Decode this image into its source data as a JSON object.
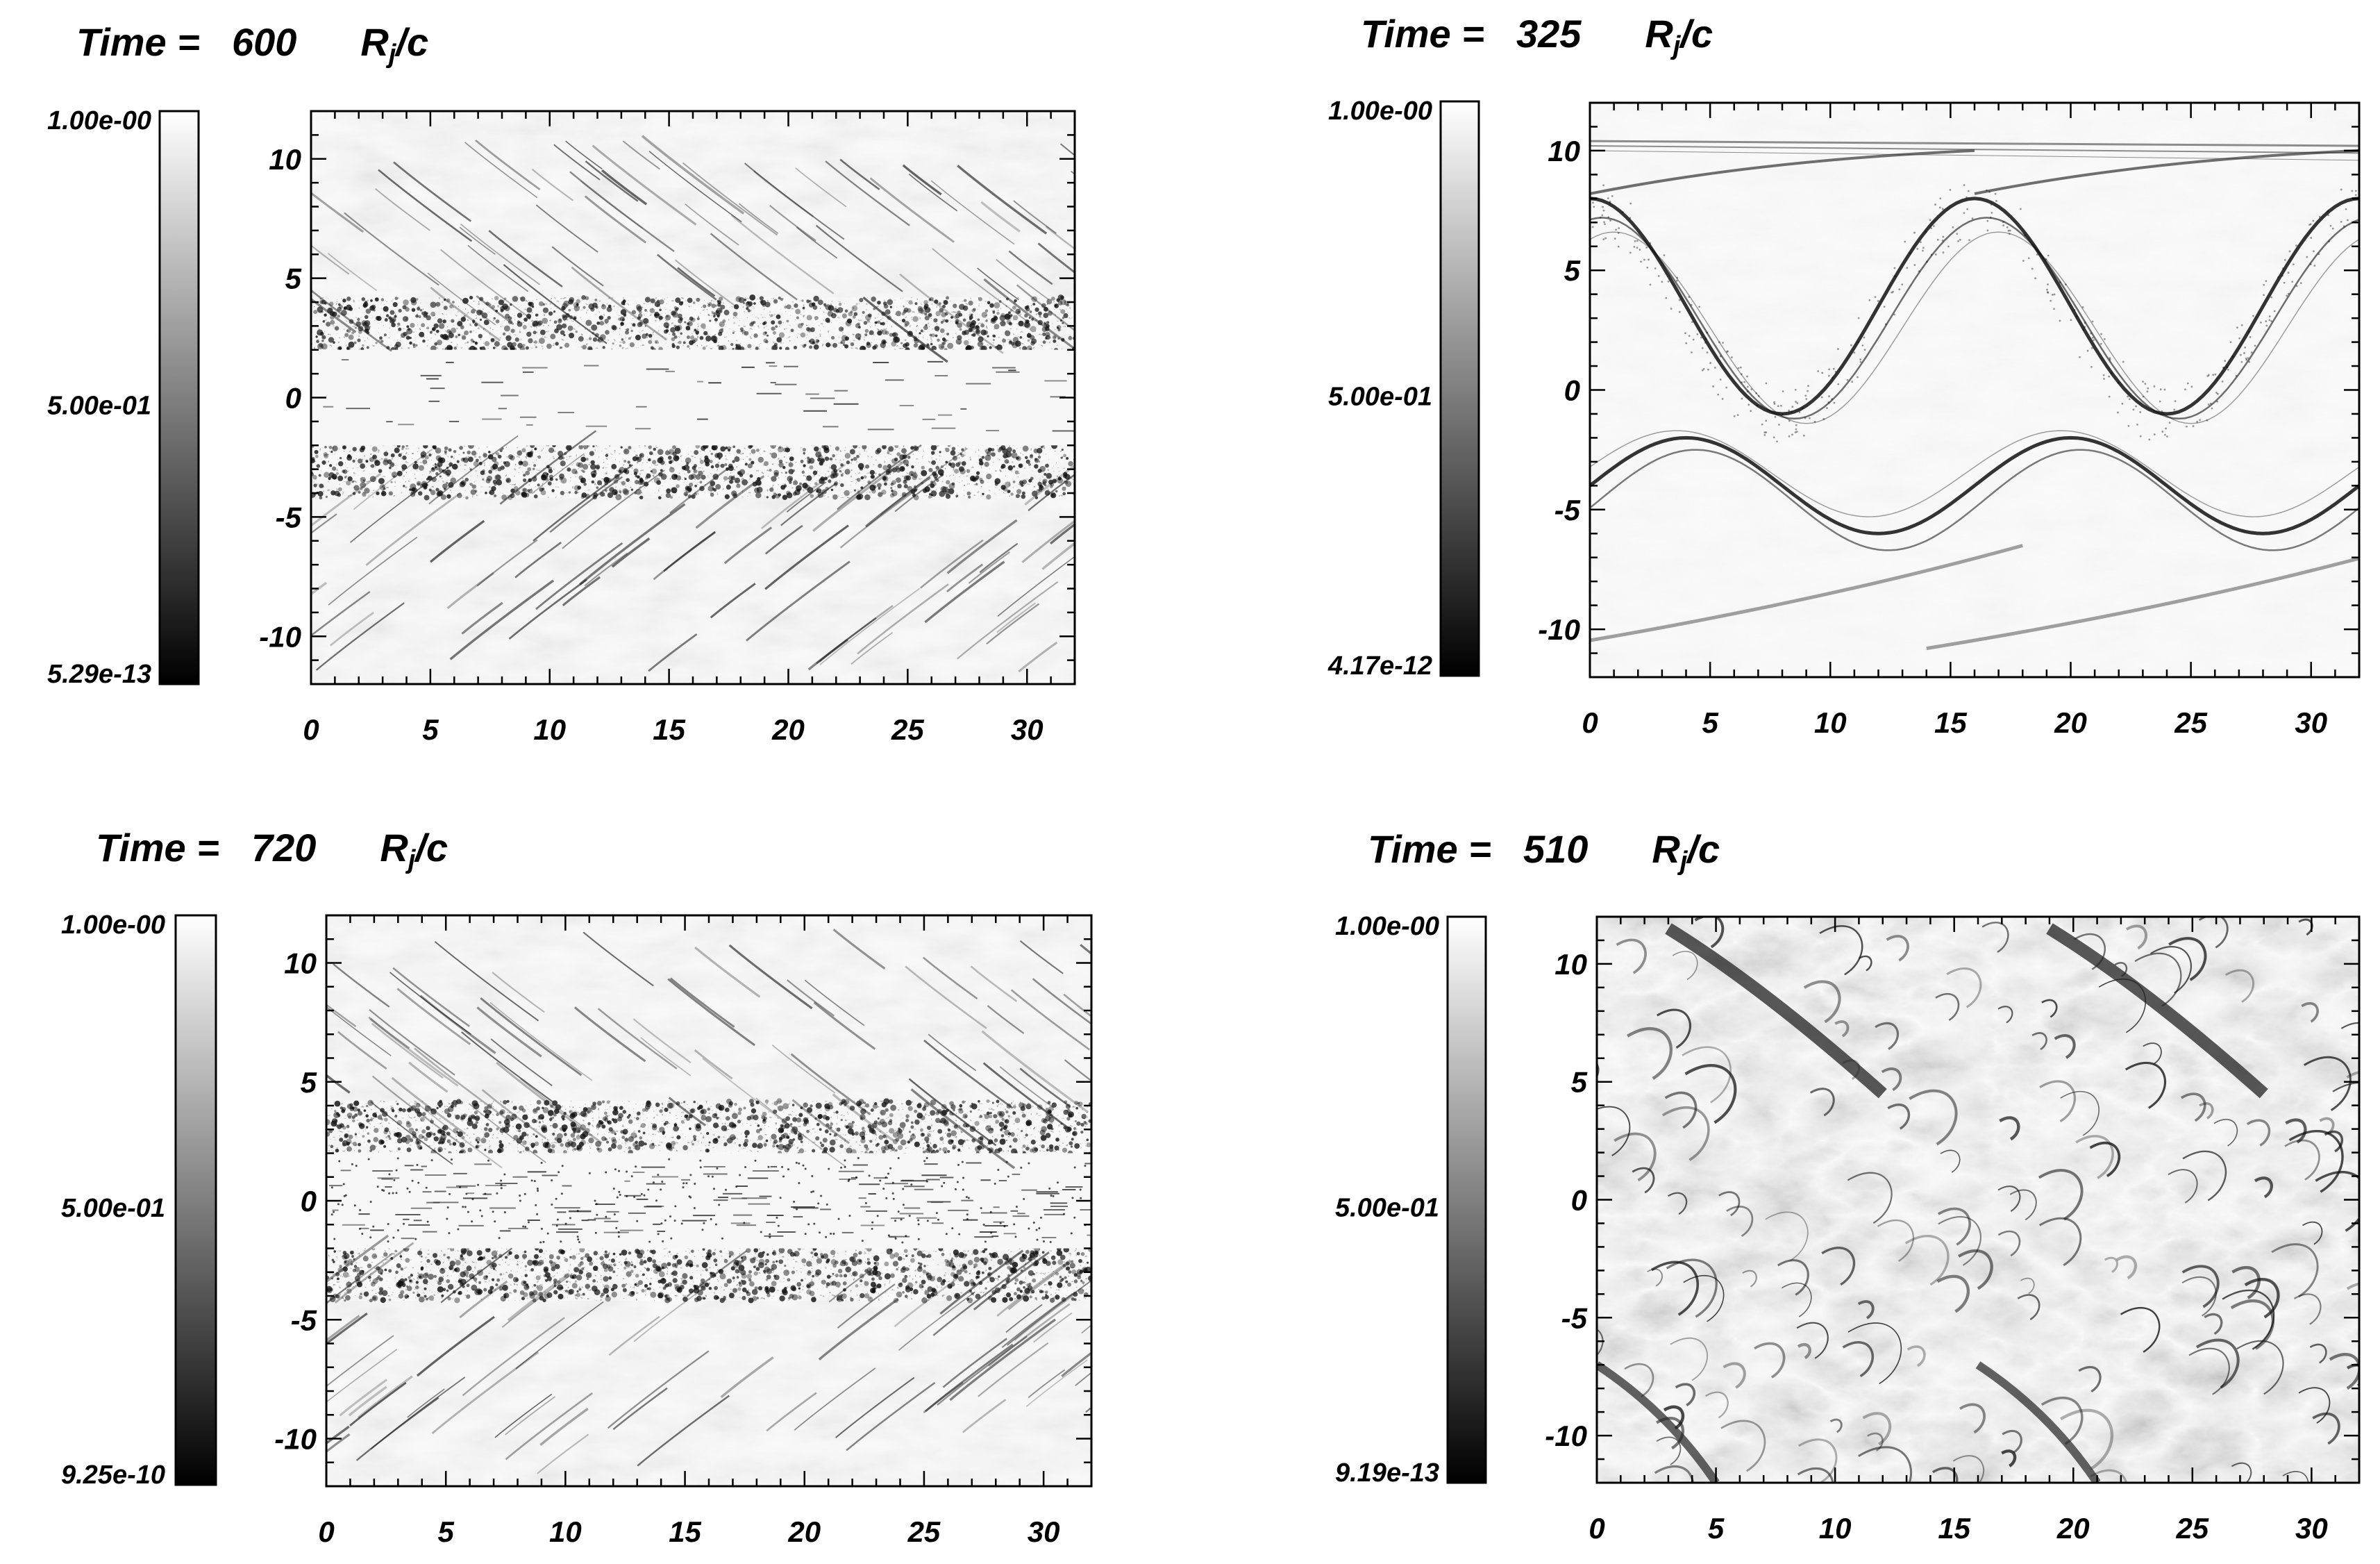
{
  "chart_data": [
    {
      "type": "heatmap",
      "title": "Time = 600",
      "time": {
        "label": "Time =",
        "value": "600",
        "unit": "R",
        "unit_sub": "j",
        "unit_tail": "/c"
      },
      "colorbar": {
        "max": "1.00e-00",
        "mid": "5.00e-01",
        "min": "5.29e-13"
      },
      "xlim": [
        0,
        32
      ],
      "ylim": [
        -12,
        12
      ],
      "xticks": [
        0,
        5,
        10,
        15,
        20,
        25,
        30
      ],
      "yticks": [
        10,
        5,
        0,
        -5,
        -10
      ],
      "field": "turbulent shear layer, dense bands at |y| 2-4, quiet core |y|<2"
    },
    {
      "type": "heatmap",
      "title": "Time = 325",
      "time": {
        "label": "Time =",
        "value": "325",
        "unit": "R",
        "unit_sub": "j",
        "unit_tail": "/c"
      },
      "colorbar": {
        "max": "1.00e-00",
        "mid": "5.00e-01",
        "min": "4.17e-12"
      },
      "xlim": [
        0,
        32
      ],
      "ylim": [
        -12,
        12
      ],
      "xticks": [
        0,
        5,
        10,
        15,
        20,
        25,
        30
      ],
      "yticks": [
        10,
        5,
        0,
        -5,
        -10
      ],
      "field": "two sinusoidal shock waves, wavelength 16"
    },
    {
      "type": "heatmap",
      "title": "Time = 720",
      "time": {
        "label": "Time =",
        "value": "720",
        "unit": "R",
        "unit_sub": "j",
        "unit_tail": "/c"
      },
      "colorbar": {
        "max": "1.00e-00",
        "mid": "5.00e-01",
        "min": "9.25e-10"
      },
      "xlim": [
        0,
        32
      ],
      "ylim": [
        -12,
        12
      ],
      "xticks": [
        0,
        5,
        10,
        15,
        20,
        25,
        30
      ],
      "yticks": [
        10,
        5,
        0,
        -5,
        -10
      ],
      "field": "turbulent shear layer, dense bands at |y| 2-4, speckled core"
    },
    {
      "type": "heatmap",
      "title": "Time = 510",
      "time": {
        "label": "Time =",
        "value": "510",
        "unit": "R",
        "unit_sub": "j",
        "unit_tail": "/c"
      },
      "colorbar": {
        "max": "1.00e-00",
        "mid": "5.00e-01",
        "min": "9.19e-13"
      },
      "xlim": [
        0,
        32
      ],
      "ylim": [
        -12,
        12
      ],
      "xticks": [
        0,
        5,
        10,
        15,
        20,
        25,
        30
      ],
      "yticks": [
        10,
        5,
        0,
        -5,
        -10
      ],
      "field": "fully mixed turbulent flow with swirling filaments"
    }
  ]
}
